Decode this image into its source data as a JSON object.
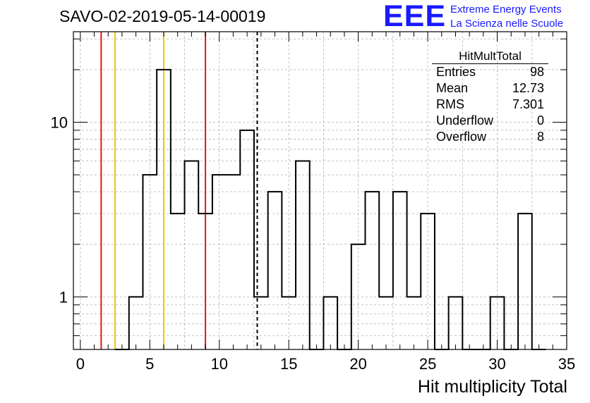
{
  "title": "SAVO-02-2019-05-14-00019",
  "logo": {
    "mark": "EEE",
    "line1": "Extreme Energy Events",
    "line2": "La Scienza nelle Scuole",
    "color": "#1a1aff"
  },
  "stats": {
    "title": "HitMultTotal",
    "rows": [
      {
        "label": "Entries",
        "value": "98"
      },
      {
        "label": "Mean",
        "value": "12.73"
      },
      {
        "label": "RMS",
        "value": "7.301"
      },
      {
        "label": "Underflow",
        "value": "0"
      },
      {
        "label": "Overflow",
        "value": "8"
      }
    ]
  },
  "chart_data": {
    "type": "histogram",
    "title": "SAVO-02-2019-05-14-00019",
    "xlabel": "Hit multiplicity Total",
    "ylabel": "",
    "xlim": [
      -0.5,
      35
    ],
    "ylim": [
      0.5,
      33
    ],
    "yscale": "log",
    "grid": true,
    "xticks": [
      0,
      5,
      10,
      15,
      20,
      25,
      30,
      35
    ],
    "yticks": [
      1,
      10
    ],
    "ytick_labels": [
      "1",
      "10"
    ],
    "bin_width": 1,
    "bins": [
      {
        "x": 3,
        "count": 0
      },
      {
        "x": 4,
        "count": 1
      },
      {
        "x": 5,
        "count": 5
      },
      {
        "x": 6,
        "count": 20
      },
      {
        "x": 7,
        "count": 3
      },
      {
        "x": 8,
        "count": 6
      },
      {
        "x": 9,
        "count": 3
      },
      {
        "x": 10,
        "count": 5
      },
      {
        "x": 11,
        "count": 5
      },
      {
        "x": 12,
        "count": 9
      },
      {
        "x": 13,
        "count": 1
      },
      {
        "x": 14,
        "count": 4
      },
      {
        "x": 15,
        "count": 1
      },
      {
        "x": 16,
        "count": 6
      },
      {
        "x": 17,
        "count": 0
      },
      {
        "x": 18,
        "count": 1
      },
      {
        "x": 19,
        "count": 0
      },
      {
        "x": 20,
        "count": 2
      },
      {
        "x": 21,
        "count": 4
      },
      {
        "x": 22,
        "count": 1
      },
      {
        "x": 23,
        "count": 4
      },
      {
        "x": 24,
        "count": 1
      },
      {
        "x": 25,
        "count": 3
      },
      {
        "x": 26,
        "count": 0
      },
      {
        "x": 27,
        "count": 1
      },
      {
        "x": 28,
        "count": 0
      },
      {
        "x": 29,
        "count": 0
      },
      {
        "x": 30,
        "count": 1
      },
      {
        "x": 31,
        "count": 0
      },
      {
        "x": 32,
        "count": 3
      },
      {
        "x": 33,
        "count": 0
      }
    ],
    "vertical_lines": [
      {
        "x": 1.5,
        "color": "#e8131b",
        "style": "solid",
        "name": "red-line-low"
      },
      {
        "x": 2.5,
        "color": "#f2c500",
        "style": "solid",
        "name": "yellow-line-low"
      },
      {
        "x": 6.0,
        "color": "#f2c500",
        "style": "solid",
        "name": "yellow-line-high"
      },
      {
        "x": 9.0,
        "color": "#e8131b",
        "style": "solid",
        "name": "red-line-high"
      },
      {
        "x": 12.73,
        "color": "#000000",
        "style": "dashed",
        "name": "mean-line"
      }
    ]
  }
}
